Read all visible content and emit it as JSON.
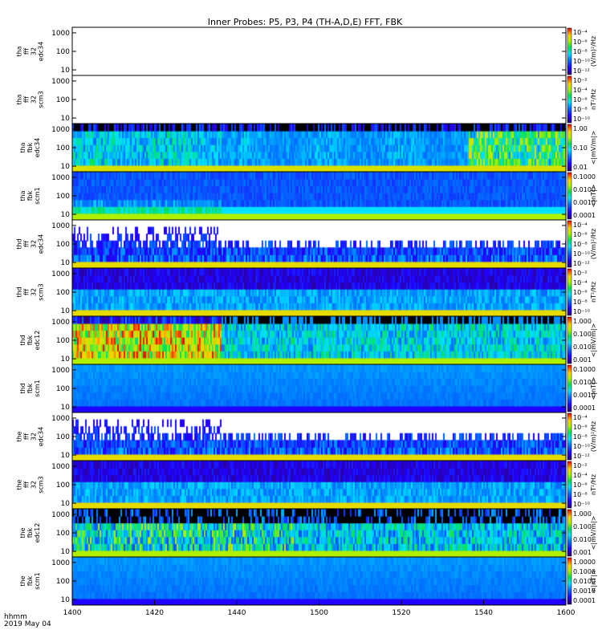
{
  "title": "Inner Probes: P5, P3, P4 (TH-A,D,E) FFT, FBK",
  "footer": {
    "time_label": "hhmm",
    "date_label": "2019 May 04"
  },
  "chart_data": {
    "type": "heatmap",
    "title": "Inner Probes: P5, P3, P4 (TH-A,D,E) FFT, FBK",
    "x": {
      "ticks": [
        "1400",
        "1420",
        "1440",
        "1500",
        "1520",
        "1540",
        "1600"
      ],
      "range_minutes": [
        0,
        120
      ],
      "label_time": "hhmm",
      "label_date": "2019 May 04"
    },
    "colormap": "rainbow (violet-blue-cyan-green-yellow-red)",
    "panels": [
      {
        "ylabel": [
          "tha",
          "fff",
          "32",
          "edc34"
        ],
        "yticks": [
          "10",
          "100",
          "1000"
        ],
        "cbar_ticks": [
          "10⁻⁴",
          "10⁻⁶",
          "10⁻⁸",
          "10⁻¹⁰",
          "10⁻¹²"
        ],
        "cbar_unit": "(V/m)²/Hz",
        "kind": "empty"
      },
      {
        "ylabel": [
          "tha",
          "fff",
          "32",
          "scm3"
        ],
        "yticks": [
          "10",
          "100",
          "1000"
        ],
        "cbar_ticks": [
          "10⁻²",
          "10⁻⁴",
          "10⁻⁶",
          "10⁻⁸",
          "10⁻¹⁰"
        ],
        "cbar_unit": "nT²/Hz",
        "kind": "empty"
      },
      {
        "ylabel": [
          "tha",
          "fbk",
          "edc34"
        ],
        "yticks": [
          "10",
          "100",
          "1000"
        ],
        "cbar_ticks": [
          "1.00",
          "0.10",
          "0.01"
        ],
        "cbar_unit": "<|mV/m|>",
        "kind": "fbk_e_active"
      },
      {
        "ylabel": [
          "tha",
          "fbk",
          "scm1"
        ],
        "yticks": [
          "10",
          "100",
          "1000"
        ],
        "cbar_ticks": [
          "0.1000",
          "0.0100",
          "0.0010",
          "0.0001"
        ],
        "cbar_unit": "<|nT|>",
        "kind": "fbk_scm_blue"
      },
      {
        "ylabel": [
          "thd",
          "fff",
          "32",
          "edc34"
        ],
        "yticks": [
          "10",
          "100",
          "1000"
        ],
        "cbar_ticks": [
          "10⁻⁴",
          "10⁻⁶",
          "10⁻⁸",
          "10⁻¹⁰",
          "10⁻¹²"
        ],
        "cbar_unit": "(V/m)²/Hz",
        "kind": "fff_e"
      },
      {
        "ylabel": [
          "thd",
          "fff",
          "32",
          "scm3"
        ],
        "yticks": [
          "10",
          "100",
          "1000"
        ],
        "cbar_ticks": [
          "10⁻²",
          "10⁻⁴",
          "10⁻⁶",
          "10⁻⁸",
          "10⁻¹⁰"
        ],
        "cbar_unit": "nT²/Hz",
        "kind": "fff_b"
      },
      {
        "ylabel": [
          "thd",
          "fbk",
          "edc12"
        ],
        "yticks": [
          "10",
          "100",
          "1000"
        ],
        "cbar_ticks": [
          "1.000",
          "0.100",
          "0.010",
          "0.001"
        ],
        "cbar_unit": "<|mV/m|>",
        "kind": "fbk_e_hot"
      },
      {
        "ylabel": [
          "thd",
          "fbk",
          "scm1"
        ],
        "yticks": [
          "10",
          "100",
          "1000"
        ],
        "cbar_ticks": [
          "0.1000",
          "0.0100",
          "0.0010",
          "0.0001"
        ],
        "cbar_unit": "<|nT|>",
        "kind": "fbk_scm_flat"
      },
      {
        "ylabel": [
          "the",
          "fff",
          "32",
          "edc34"
        ],
        "yticks": [
          "10",
          "100",
          "1000"
        ],
        "cbar_ticks": [
          "10⁻⁴",
          "10⁻⁶",
          "10⁻⁸",
          "10⁻¹⁰",
          "10⁻¹²"
        ],
        "cbar_unit": "(V/m)²/Hz",
        "kind": "fff_e"
      },
      {
        "ylabel": [
          "the",
          "fff",
          "32",
          "scm3"
        ],
        "yticks": [
          "10",
          "100",
          "1000"
        ],
        "cbar_ticks": [
          "10⁻²",
          "10⁻⁴",
          "10⁻⁶",
          "10⁻⁸",
          "10⁻¹⁰"
        ],
        "cbar_unit": "nT²/Hz",
        "kind": "fff_b"
      },
      {
        "ylabel": [
          "the",
          "fbk",
          "edc12"
        ],
        "yticks": [
          "10",
          "100",
          "1000"
        ],
        "cbar_ticks": [
          "1.000",
          "0.100",
          "0.010",
          "0.001"
        ],
        "cbar_unit": "<|mV/m|>",
        "kind": "fbk_e_mixed"
      },
      {
        "ylabel": [
          "the",
          "fbk",
          "scm1"
        ],
        "yticks": [
          "10",
          "100",
          "1000"
        ],
        "cbar_ticks": [
          "1.0000",
          "0.1000",
          "0.0100",
          "0.0010",
          "0.0001"
        ],
        "cbar_unit": "<|nT|>",
        "kind": "fbk_scm_flat"
      }
    ]
  }
}
